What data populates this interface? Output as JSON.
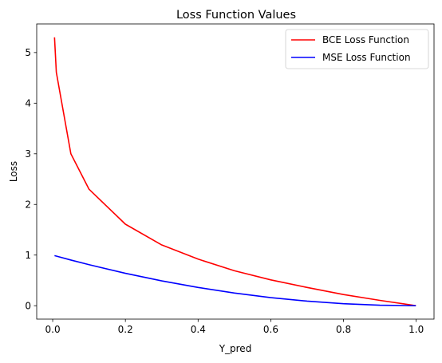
{
  "chart_data": {
    "type": "line",
    "title": "Loss Function Values",
    "xlabel": "Y_pred",
    "ylabel": "Loss",
    "xlim": [
      -0.044,
      1.049
    ],
    "ylim": [
      -0.265,
      5.565
    ],
    "xticks": [
      0.0,
      0.2,
      0.4,
      0.6,
      0.8,
      1.0
    ],
    "xtick_labels": [
      "0.0",
      "0.2",
      "0.4",
      "0.6",
      "0.8",
      "1.0"
    ],
    "yticks": [
      0,
      1,
      2,
      3,
      4,
      5
    ],
    "ytick_labels": [
      "0",
      "1",
      "2",
      "3",
      "4",
      "5"
    ],
    "grid": false,
    "legend_position": "top-right",
    "series": [
      {
        "name": "BCE Loss Function",
        "color": "#ff0000",
        "x": [
          0.005,
          0.01,
          0.05,
          0.1,
          0.2,
          0.3,
          0.4,
          0.5,
          0.6,
          0.7,
          0.8,
          0.9,
          0.999
        ],
        "y": [
          5.3,
          4.61,
          3.0,
          2.3,
          1.61,
          1.2,
          0.92,
          0.69,
          0.51,
          0.36,
          0.22,
          0.105,
          0.001
        ]
      },
      {
        "name": "MSE Loss Function",
        "color": "#0000ff",
        "x": [
          0.005,
          0.01,
          0.05,
          0.1,
          0.2,
          0.3,
          0.4,
          0.5,
          0.6,
          0.7,
          0.8,
          0.9,
          0.999
        ],
        "y": [
          0.99,
          0.98,
          0.902,
          0.81,
          0.64,
          0.49,
          0.36,
          0.25,
          0.16,
          0.09,
          0.04,
          0.01,
          0.0
        ]
      }
    ]
  }
}
